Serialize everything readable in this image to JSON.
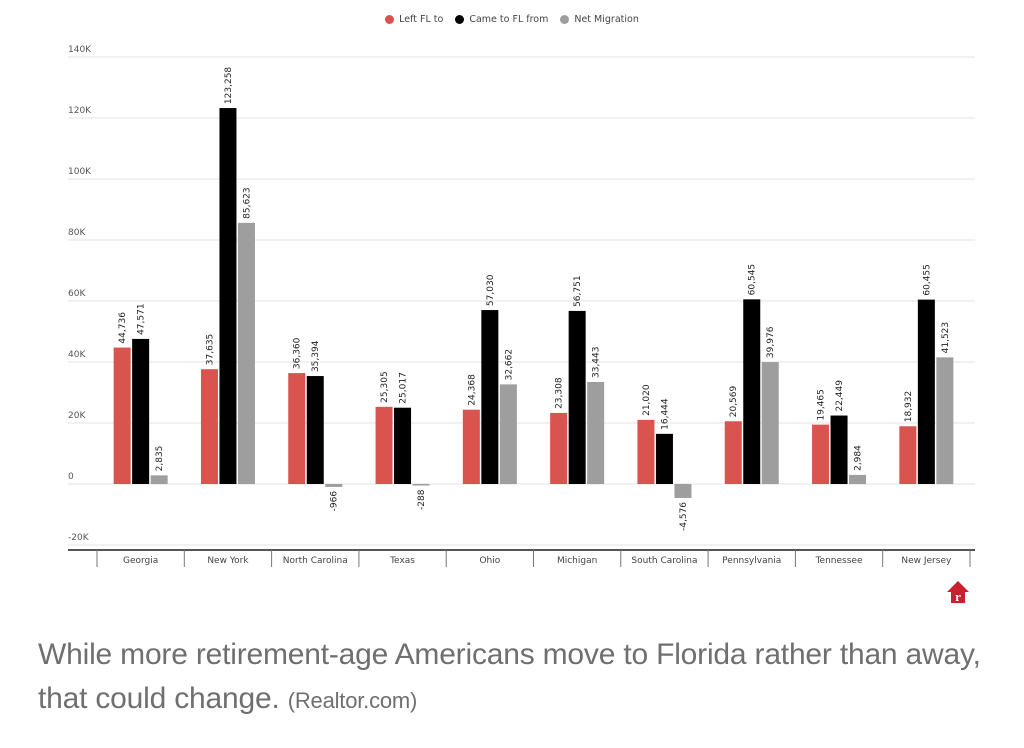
{
  "chart_data": {
    "type": "bar",
    "title": "",
    "xlabel": "",
    "ylabel": "",
    "categories": [
      "Georgia",
      "New York",
      "North Carolina",
      "Texas",
      "Ohio",
      "Michigan",
      "South Carolina",
      "Pennsylvania",
      "Tennessee",
      "New Jersey"
    ],
    "series": [
      {
        "name": "Left FL to",
        "color": "#d9534f",
        "values": [
          44736,
          37635,
          36360,
          25305,
          24368,
          23308,
          21020,
          20569,
          19465,
          18932
        ],
        "labels": [
          "44,736",
          "37,635",
          "36,360",
          "25,305",
          "24,368",
          "23,308",
          "21,020",
          "20,569",
          "19,465",
          "18,932"
        ]
      },
      {
        "name": "Came to FL from",
        "color": "#000000",
        "values": [
          47571,
          123258,
          35394,
          25017,
          57030,
          56751,
          16444,
          60545,
          22449,
          60455
        ],
        "labels": [
          "47,571",
          "123,258",
          "35,394",
          "25,017",
          "57,030",
          "56,751",
          "16,444",
          "60,545",
          "22,449",
          "60,455"
        ]
      },
      {
        "name": "Net Migration",
        "color": "#9e9e9e",
        "values": [
          2835,
          85623,
          -966,
          -288,
          32662,
          33443,
          -4576,
          39976,
          2984,
          41523
        ],
        "labels": [
          "2,835",
          "85,623",
          "-966",
          "-288",
          "32,662",
          "33,443",
          "-4,576",
          "39,976",
          "2,984",
          "41,523"
        ]
      }
    ],
    "ylim": [
      -20000,
      140000
    ],
    "yticks": [
      140000,
      120000,
      100000,
      80000,
      60000,
      40000,
      20000,
      0,
      -20000
    ],
    "ytick_labels": [
      "140K",
      "120K",
      "100K",
      "80K",
      "60K",
      "40K",
      "20K",
      "0",
      "-20K"
    ],
    "grid": true,
    "legend_position": "top-center"
  },
  "caption": {
    "text": "While more retirement-age Americans move to Florida rather than away, that could change.",
    "source": "(Realtor.com)"
  },
  "logo": {
    "name": "realtor-logo",
    "glyph": "r",
    "color": "#c8202f"
  }
}
